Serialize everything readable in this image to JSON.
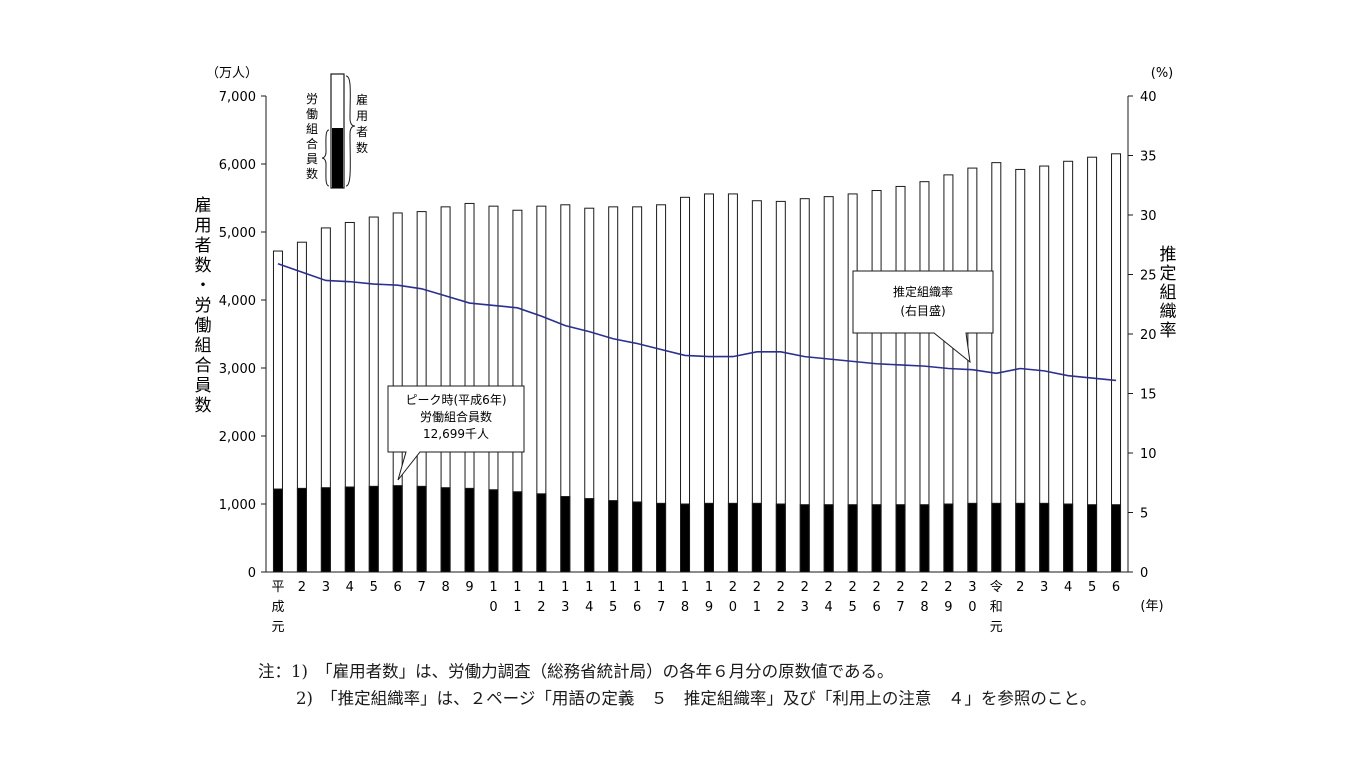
{
  "chart_data": {
    "type": "bar",
    "y_left_unit": "（万人）",
    "y_right_unit": "(%)",
    "x_unit": "(年)",
    "y_left_label": "雇用者数・労働組合員数",
    "y_right_label": "推定組織率",
    "ylim_left": [
      0,
      7000
    ],
    "ylim_right": [
      0,
      40
    ],
    "y_left_ticks": [
      "0",
      "1,000",
      "2,000",
      "3,000",
      "4,000",
      "5,000",
      "6,000",
      "7,000"
    ],
    "y_right_ticks": [
      "0",
      "5",
      "10",
      "15",
      "20",
      "25",
      "30",
      "35",
      "40"
    ],
    "categories": [
      "平成元",
      "2",
      "3",
      "4",
      "5",
      "6",
      "7",
      "8",
      "9",
      "10",
      "11",
      "12",
      "13",
      "14",
      "15",
      "16",
      "17",
      "18",
      "19",
      "20",
      "21",
      "22",
      "23",
      "24",
      "25",
      "26",
      "27",
      "28",
      "29",
      "30",
      "令和元",
      "2",
      "3",
      "4",
      "5",
      "6"
    ],
    "employees": [
      4720,
      4850,
      5060,
      5140,
      5220,
      5280,
      5300,
      5370,
      5420,
      5380,
      5320,
      5380,
      5400,
      5350,
      5370,
      5370,
      5400,
      5510,
      5560,
      5560,
      5460,
      5450,
      5490,
      5520,
      5560,
      5610,
      5670,
      5740,
      5840,
      5940,
      6020,
      5920,
      5970,
      6040,
      6100,
      6150
    ],
    "union_members": [
      1220,
      1230,
      1240,
      1250,
      1260,
      1270,
      1260,
      1240,
      1230,
      1210,
      1180,
      1150,
      1110,
      1080,
      1050,
      1030,
      1010,
      1000,
      1010,
      1010,
      1010,
      1000,
      990,
      990,
      990,
      990,
      990,
      990,
      1000,
      1010,
      1010,
      1010,
      1010,
      1000,
      990,
      990
    ],
    "organization_rate": [
      25.9,
      25.2,
      24.5,
      24.4,
      24.2,
      24.1,
      23.8,
      23.2,
      22.6,
      22.4,
      22.2,
      21.5,
      20.7,
      20.2,
      19.6,
      19.2,
      18.7,
      18.2,
      18.1,
      18.1,
      18.5,
      18.5,
      18.1,
      17.9,
      17.7,
      17.5,
      17.4,
      17.3,
      17.1,
      17.0,
      16.7,
      17.1,
      16.9,
      16.5,
      16.3,
      16.1
    ],
    "legend": {
      "employees": "雇用者数",
      "union_members": "労働組合員数"
    },
    "annotations": {
      "peak": [
        "ピーク時(平成6年)",
        "労働組合員数",
        "12,699千人"
      ],
      "rate": [
        "推定組織率",
        "(右目盛)"
      ]
    }
  },
  "notes": {
    "line1": "注：1)　「雇用者数」は、労働力調査（総務省統計局）の各年６月分の原数値である。",
    "line2": "2)　「推定組織率」は、２ページ「用語の定義　５　推定組織率」及び「利用上の注意　４」を参照のこと。"
  },
  "colors": {
    "bar_outline": "#1a1a1a",
    "bar_fill": "#ffffff",
    "union_fill": "#000000",
    "rate_line": "#2b2f8f"
  }
}
